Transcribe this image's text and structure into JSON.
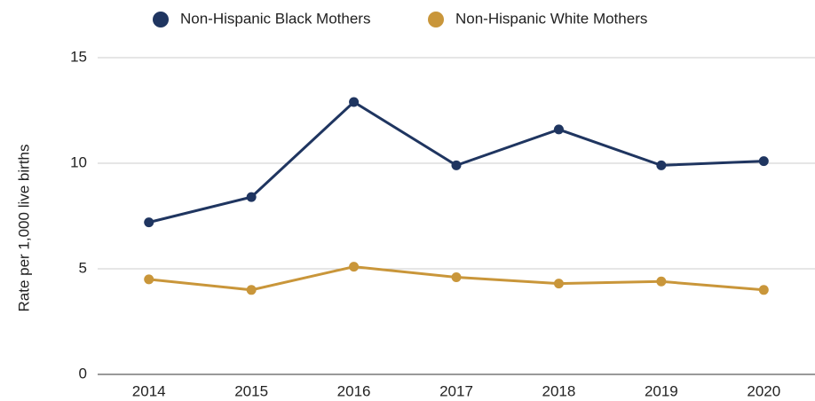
{
  "chart_data": {
    "type": "line",
    "y_label": "Rate per 1,000 live births",
    "categories": [
      "2014",
      "2015",
      "2016",
      "2017",
      "2018",
      "2019",
      "2020"
    ],
    "series": [
      {
        "name": "Non-Hispanic Black Mothers",
        "color": "#1f3560",
        "values": [
          7.2,
          8.4,
          12.9,
          9.9,
          11.6,
          9.9,
          10.1
        ]
      },
      {
        "name": "Non-Hispanic White Mothers",
        "color": "#c9963a",
        "values": [
          4.5,
          4.0,
          5.1,
          4.6,
          4.3,
          4.4,
          4.0
        ]
      }
    ],
    "ylim": [
      0,
      15
    ],
    "yticks": [
      0,
      5,
      10,
      15
    ],
    "grid": true,
    "legend": "top"
  }
}
